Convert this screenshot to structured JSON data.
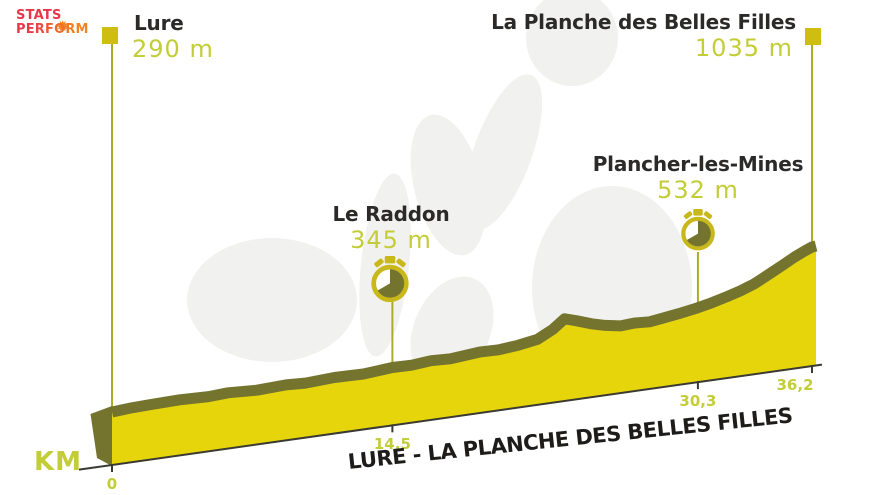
{
  "logo": {
    "line1": "STATS",
    "line2": "PERFORM"
  },
  "km_axis_label": "KM",
  "title": "LURE - LA PLANCHE DES BELLES FILLES",
  "chart_data": {
    "type": "area",
    "description": "Cycling stage elevation profile, pseudo-3D rising baseline",
    "units": {
      "distance": "km",
      "elevation": "m"
    },
    "x_range_km": [
      0,
      36.2
    ],
    "elevation_range_m": [
      290,
      1035
    ],
    "km_ticks": [
      {
        "km": 0,
        "label": "0",
        "label_dx": 0
      },
      {
        "km": 14.5,
        "label": "14,5",
        "label_dx": 0
      },
      {
        "km": 30.3,
        "label": "30,3",
        "label_dx": 0
      },
      {
        "km": 36.2,
        "label": "36,2",
        "label_dx": -17
      }
    ],
    "waypoints": [
      {
        "name": "Lure",
        "km": 0,
        "elevation_m": 290,
        "elevation_label": "290 m",
        "type": "start"
      },
      {
        "name": "Le Raddon",
        "km": 14.5,
        "elevation_m": 345,
        "elevation_label": "345 m",
        "type": "timecheck"
      },
      {
        "name": "Plancher-les-Mines",
        "km": 30.3,
        "elevation_m": 532,
        "elevation_label": "532 m",
        "type": "timecheck"
      },
      {
        "name": "La Planche des Belles Filles",
        "km": 36.2,
        "elevation_m": 1035,
        "elevation_label": "1035 m",
        "type": "finish"
      }
    ],
    "profile_km_elevation_m": [
      [
        0,
        290
      ],
      [
        1,
        305
      ],
      [
        2,
        312
      ],
      [
        3.5,
        320
      ],
      [
        5,
        310
      ],
      [
        6,
        322
      ],
      [
        7.5,
        305
      ],
      [
        9,
        318
      ],
      [
        10,
        308
      ],
      [
        11.5,
        325
      ],
      [
        13,
        318
      ],
      [
        14.5,
        345
      ],
      [
        15.5,
        340
      ],
      [
        16.5,
        360
      ],
      [
        17.5,
        350
      ],
      [
        19,
        380
      ],
      [
        20,
        375
      ],
      [
        21,
        395
      ],
      [
        22,
        430
      ],
      [
        22.8,
        520
      ],
      [
        23.4,
        620
      ],
      [
        24,
        580
      ],
      [
        24.8,
        520
      ],
      [
        25.5,
        480
      ],
      [
        26.3,
        450
      ],
      [
        27,
        460
      ],
      [
        27.8,
        450
      ],
      [
        28.5,
        470
      ],
      [
        29.3,
        495
      ],
      [
        30.3,
        532
      ],
      [
        31,
        565
      ],
      [
        31.8,
        610
      ],
      [
        32.5,
        655
      ],
      [
        33.2,
        710
      ],
      [
        34,
        800
      ],
      [
        34.7,
        880
      ],
      [
        35.3,
        950
      ],
      [
        35.8,
        1000
      ],
      [
        36.2,
        1035
      ]
    ],
    "colors": {
      "profile_fill": "#e7d50c",
      "profile_edge": "#75742f",
      "accent": "#c3cd37",
      "connector_line": "#abae25",
      "marker": "#cfbe11",
      "axis": "#3a3a33",
      "icon": "#c9b81b",
      "title_text": "#1d1c1a",
      "name_text": "#2b2a29",
      "logo_red": "#e8374a",
      "logo_orange": "#f4821f",
      "silhouette": "#f1f1ef"
    },
    "legend": "none",
    "grid": "off"
  }
}
